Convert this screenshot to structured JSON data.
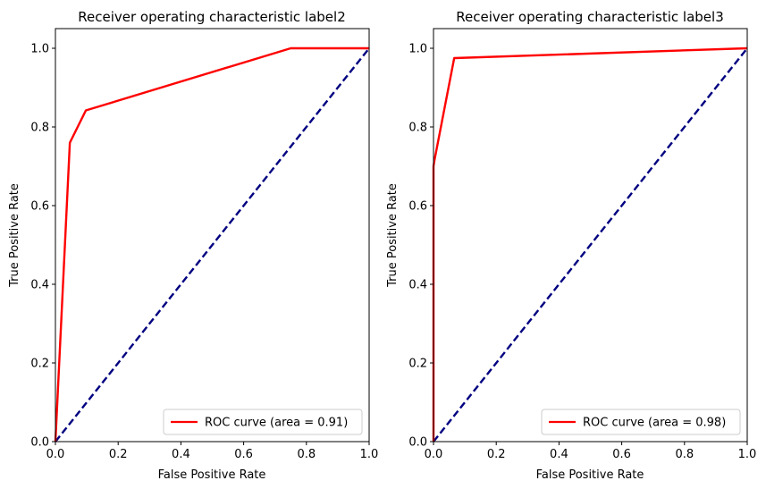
{
  "chart_data": [
    {
      "type": "line",
      "title": "Receiver operating characteristic label2",
      "xlabel": "False Positive Rate",
      "ylabel": "True Positive Rate",
      "xlim": [
        0.0,
        1.0
      ],
      "ylim": [
        0.0,
        1.05
      ],
      "xticks": [
        "0.0",
        "0.2",
        "0.4",
        "0.6",
        "0.8",
        "1.0"
      ],
      "yticks": [
        "0.0",
        "0.2",
        "0.4",
        "0.6",
        "0.8",
        "1.0"
      ],
      "grid": false,
      "legend_position": "lower-right",
      "series": [
        {
          "name": "ROC curve (area = 0.91)",
          "color": "#ff0000",
          "style": "solid",
          "x": [
            0.0,
            0.046,
            0.097,
            0.75,
            1.0
          ],
          "y": [
            0.0,
            0.76,
            0.842,
            1.0,
            1.0
          ]
        },
        {
          "color": "#000080",
          "style": "dashed",
          "x": [
            0.0,
            1.0
          ],
          "y": [
            0.0,
            1.0
          ]
        }
      ]
    },
    {
      "type": "line",
      "title": "Receiver operating characteristic label3",
      "xlabel": "False Positive Rate",
      "ylabel": "True Positive Rate",
      "xlim": [
        0.0,
        1.0
      ],
      "ylim": [
        0.0,
        1.05
      ],
      "xticks": [
        "0.0",
        "0.2",
        "0.4",
        "0.6",
        "0.8",
        "1.0"
      ],
      "yticks": [
        "0.0",
        "0.2",
        "0.4",
        "0.6",
        "0.8",
        "1.0"
      ],
      "grid": false,
      "legend_position": "lower-right",
      "series": [
        {
          "name": "ROC curve (area = 0.98)",
          "color": "#ff0000",
          "style": "solid",
          "x": [
            0.0,
            0.0,
            0.003,
            0.066,
            1.0
          ],
          "y": [
            0.0,
            0.7,
            0.715,
            0.975,
            1.0
          ]
        },
        {
          "color": "#000080",
          "style": "dashed",
          "x": [
            0.0,
            1.0
          ],
          "y": [
            0.0,
            1.0
          ]
        }
      ]
    }
  ]
}
